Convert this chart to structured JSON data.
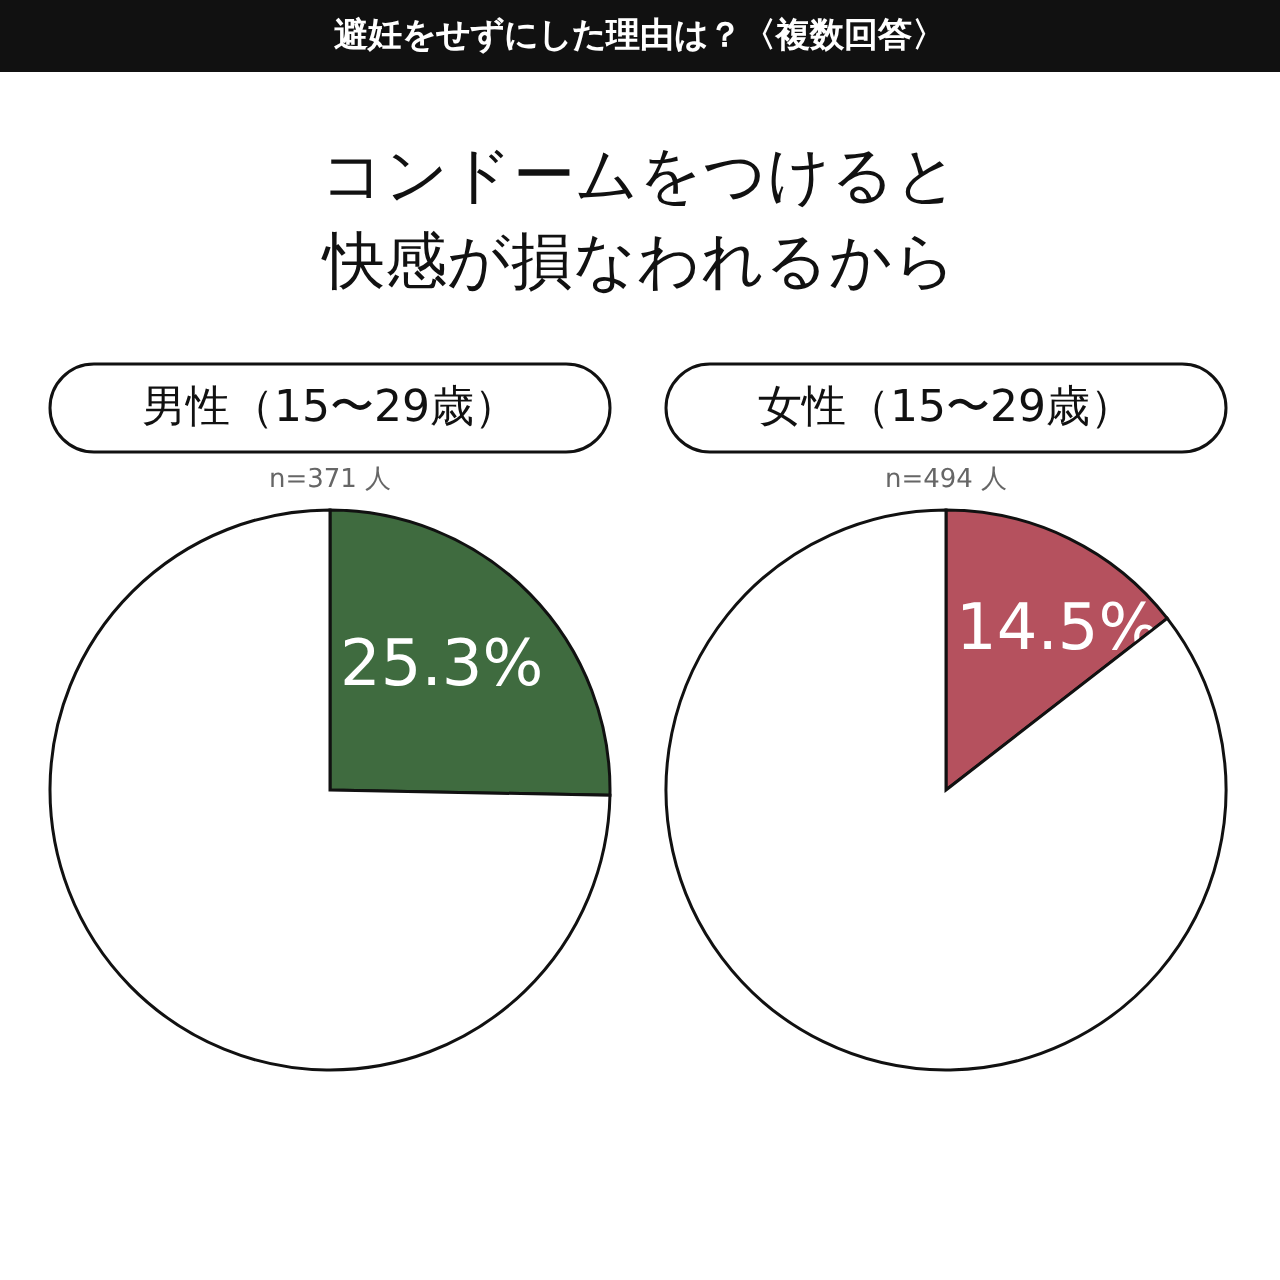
{
  "chart_data": [
    {
      "type": "other",
      "title": "避妊をせずにした理由は？〈複数回答〉",
      "subtitle": "コンドームをつけると快感が損なわれるから"
    },
    {
      "type": "pie",
      "title": "男性（15〜29歳）",
      "annotations": [
        "n=371 人"
      ],
      "categories": [
        null,
        null
      ],
      "values": [
        25.3,
        74.7
      ],
      "colors": [
        "#3f6b3f",
        "#ffffff"
      ],
      "value_labels": [
        "25.3%",
        null
      ]
    },
    {
      "type": "pie",
      "title": "女性（15〜29歳）",
      "annotations": [
        "n=494 人"
      ],
      "categories": [
        null,
        null
      ],
      "values": [
        14.5,
        85.5
      ],
      "colors": [
        "#b5515e",
        "#ffffff"
      ],
      "value_labels": [
        "14.5%",
        null
      ]
    }
  ]
}
